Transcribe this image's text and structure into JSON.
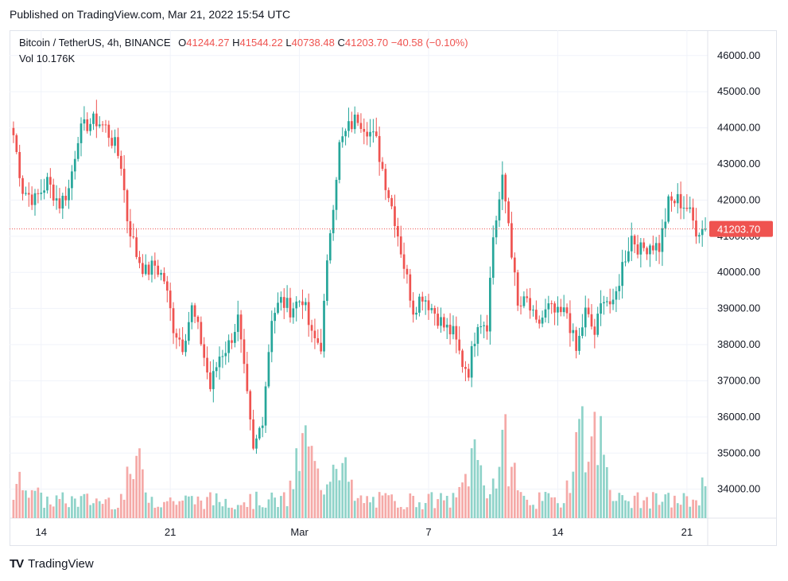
{
  "published": "Published on TradingView.com, Mar 21, 2022 15:54 UTC",
  "legend": {
    "symbol": "Bitcoin / TetherUS, 4h, BINANCE",
    "o_label": "O",
    "o_value": "41244.27",
    "h_label": "H",
    "h_value": "41544.22",
    "l_label": "L",
    "l_value": "40738.48",
    "c_label": "C",
    "c_value": "41203.70",
    "change": "−40.58 (−0.10%)",
    "vol_label": "Vol",
    "vol_value": "10.176K"
  },
  "brand": {
    "logo": "TV",
    "name": "TradingView"
  },
  "colors": {
    "up": "#26a69a",
    "down": "#ef5350",
    "up_vol": "#8fd3c9",
    "down_vol": "#f5a9a7",
    "grid": "#f0f3fa"
  },
  "chart_data": {
    "type": "candlestick",
    "title": "Bitcoin / TetherUS, 4h, BINANCE",
    "y_ticks": [
      "46000.00",
      "45000.00",
      "44000.00",
      "43000.00",
      "42000.00",
      "41000.00",
      "40000.00",
      "39000.00",
      "38000.00",
      "37000.00",
      "36000.00",
      "35000.00",
      "34000.00"
    ],
    "ylim": [
      33200,
      46700
    ],
    "last_price": 41203.7,
    "last_price_label": "41203.70",
    "x_ticks": [
      {
        "label": "14",
        "index": 9
      },
      {
        "label": "21",
        "index": 51
      },
      {
        "label": "Mar",
        "index": 93
      },
      {
        "label": "7",
        "index": 135
      },
      {
        "label": "14",
        "index": 177
      },
      {
        "label": "21",
        "index": 219
      }
    ],
    "close_path": [
      [
        0,
        43800
      ],
      [
        3,
        42300
      ],
      [
        7,
        42000
      ],
      [
        11,
        42500
      ],
      [
        15,
        41900
      ],
      [
        18,
        42300
      ],
      [
        21,
        43800
      ],
      [
        24,
        44100
      ],
      [
        27,
        44200
      ],
      [
        30,
        44000
      ],
      [
        33,
        43500
      ],
      [
        35,
        43000
      ],
      [
        37,
        41500
      ],
      [
        40,
        40500
      ],
      [
        43,
        40000
      ],
      [
        46,
        40200
      ],
      [
        49,
        39800
      ],
      [
        52,
        38500
      ],
      [
        55,
        38000
      ],
      [
        58,
        39000
      ],
      [
        61,
        38100
      ],
      [
        64,
        36800
      ],
      [
        67,
        37700
      ],
      [
        70,
        38000
      ],
      [
        73,
        38700
      ],
      [
        76,
        36500
      ],
      [
        78,
        35000
      ],
      [
        81,
        36000
      ],
      [
        84,
        38800
      ],
      [
        87,
        39200
      ],
      [
        90,
        39000
      ],
      [
        94,
        39300
      ],
      [
        97,
        38200
      ],
      [
        100,
        38000
      ],
      [
        103,
        41200
      ],
      [
        106,
        43500
      ],
      [
        109,
        44000
      ],
      [
        112,
        44300
      ],
      [
        115,
        44000
      ],
      [
        118,
        43600
      ],
      [
        121,
        42500
      ],
      [
        124,
        41500
      ],
      [
        127,
        40200
      ],
      [
        130,
        39000
      ],
      [
        133,
        39400
      ],
      [
        137,
        38900
      ],
      [
        140,
        38500
      ],
      [
        143,
        38300
      ],
      [
        146,
        37500
      ],
      [
        148,
        37300
      ],
      [
        151,
        38700
      ],
      [
        154,
        38600
      ],
      [
        156,
        41000
      ],
      [
        159,
        42500
      ],
      [
        161,
        41400
      ],
      [
        164,
        39000
      ],
      [
        167,
        39200
      ],
      [
        170,
        38500
      ],
      [
        174,
        39000
      ],
      [
        177,
        38800
      ],
      [
        180,
        38900
      ],
      [
        183,
        37800
      ],
      [
        186,
        38900
      ],
      [
        189,
        38300
      ],
      [
        192,
        39400
      ],
      [
        195,
        39000
      ],
      [
        198,
        40200
      ],
      [
        201,
        41000
      ],
      [
        204,
        40600
      ],
      [
        207,
        40800
      ],
      [
        210,
        40700
      ],
      [
        213,
        41900
      ],
      [
        216,
        42000
      ],
      [
        219,
        41800
      ],
      [
        222,
        41200
      ],
      [
        225,
        41204
      ]
    ],
    "volume_range": [
      0,
      50
    ],
    "volume_peaks": [
      [
        4,
        20
      ],
      [
        40,
        25
      ],
      [
        95,
        35
      ],
      [
        105,
        33
      ],
      [
        150,
        30
      ],
      [
        160,
        32
      ],
      [
        185,
        45
      ],
      [
        190,
        40
      ],
      [
        225,
        15
      ]
    ]
  }
}
